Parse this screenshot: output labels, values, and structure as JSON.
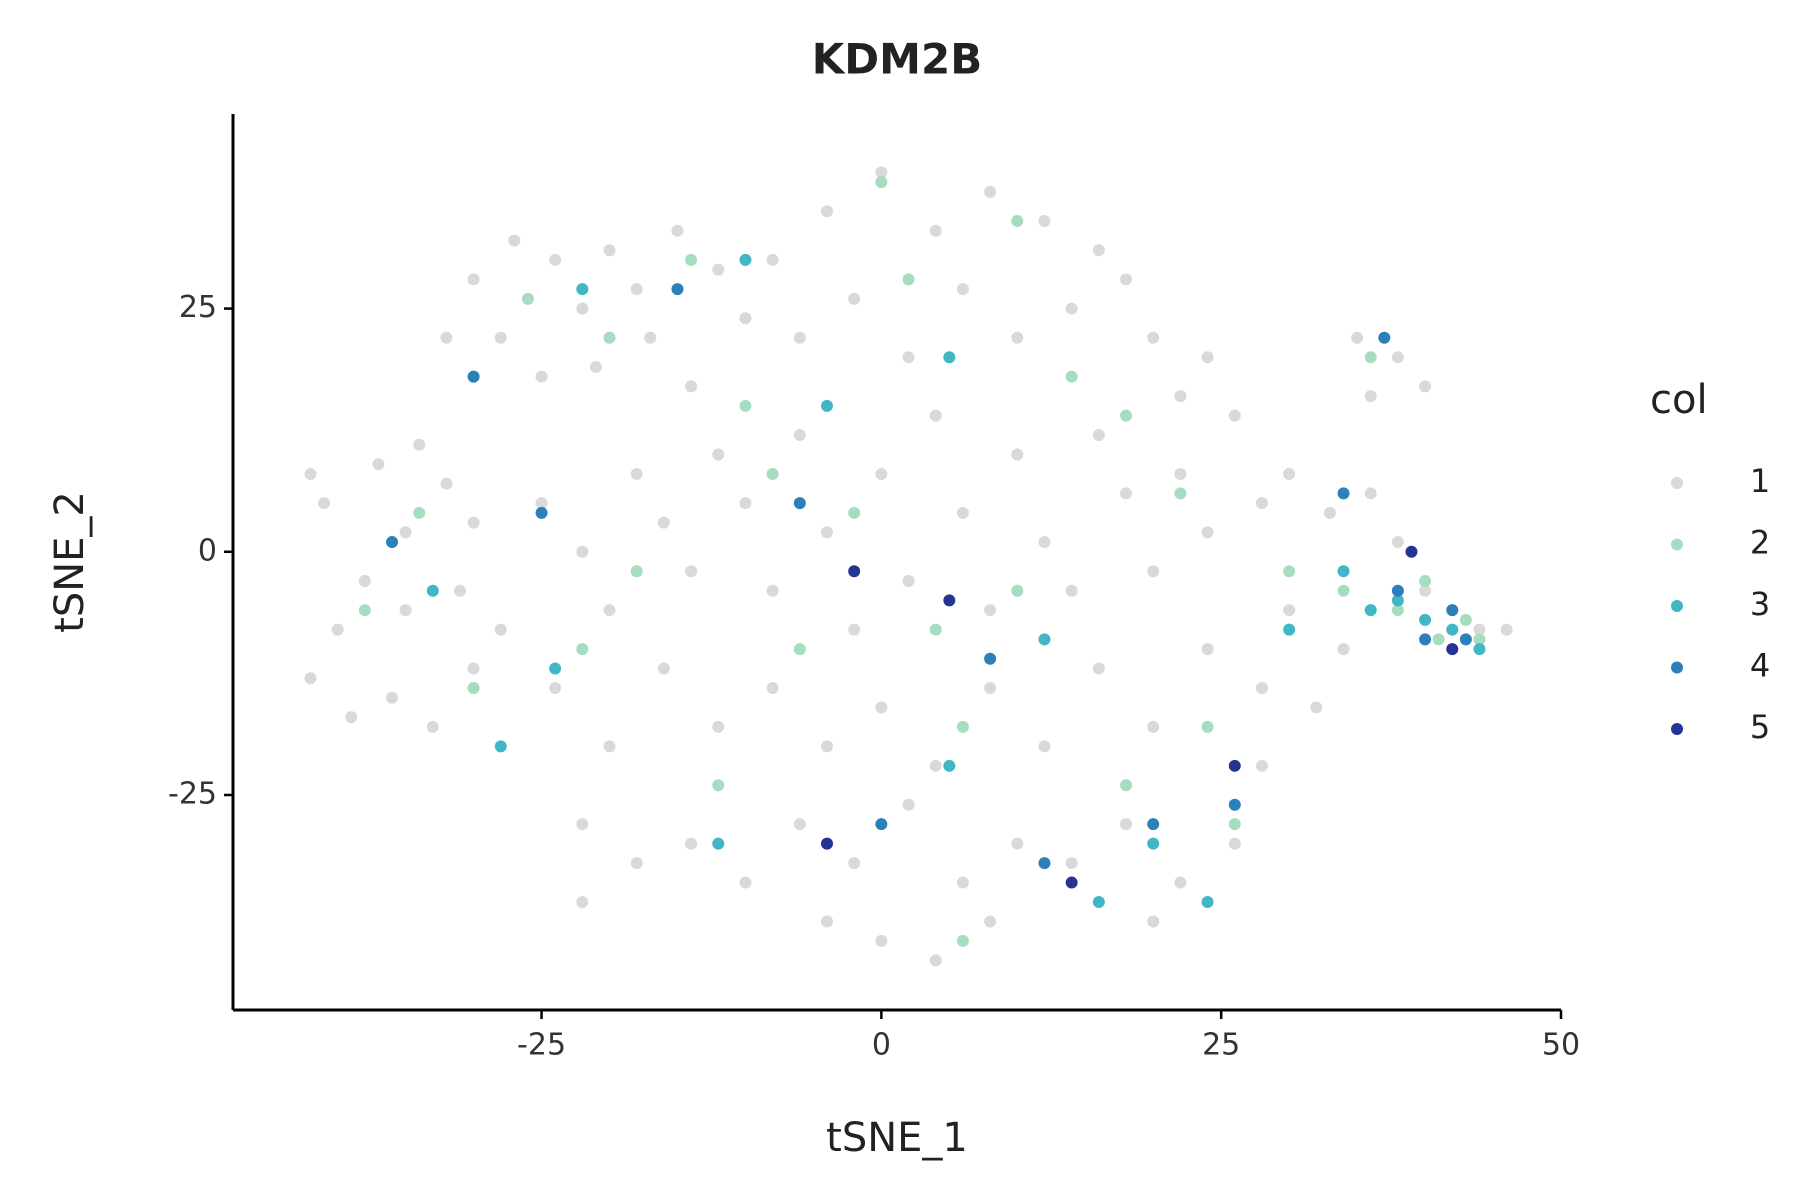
{
  "chart_data": {
    "type": "scatter",
    "title": "KDM2B",
    "x_label": "tSNE_1",
    "y_label": "tSNE_2",
    "xlim": [
      -47.7,
      50
    ],
    "ylim": [
      -47.1,
      45
    ],
    "xticks": [
      -25,
      0,
      25,
      50
    ],
    "yticks": [
      -25,
      0,
      25
    ],
    "legend_title": "col",
    "legend_position": "right",
    "series": [
      {
        "name": "1",
        "color": "#d9d9d9",
        "x": [
          -42,
          -40,
          -38,
          -41,
          -37,
          -34,
          -32,
          -30,
          -36,
          -33,
          -30,
          -39,
          -35,
          -31,
          -28,
          -42,
          -35,
          -30,
          -27,
          -24,
          -22,
          -20,
          -18,
          -15,
          -12,
          -28,
          -25,
          -21,
          -17,
          -14,
          -10,
          -32,
          -25,
          -22,
          -20,
          -18,
          -16,
          -14,
          -12,
          -10,
          -8,
          -6,
          -4,
          -2,
          0,
          2,
          4,
          6,
          8,
          10,
          12,
          14,
          16,
          18,
          20,
          22,
          24,
          -24,
          -20,
          -16,
          -12,
          -8,
          -4,
          0,
          4,
          8,
          12,
          16,
          20,
          24,
          28,
          30,
          -22,
          -18,
          -14,
          -10,
          -6,
          -2,
          2,
          6,
          10,
          14,
          18,
          22,
          26,
          28,
          -22,
          0,
          4,
          8,
          -4,
          20,
          -8,
          -4,
          0,
          4,
          8,
          12,
          16,
          18,
          -6,
          -2,
          2,
          6,
          10,
          14,
          20,
          24,
          26,
          22,
          30,
          33,
          36,
          38,
          40,
          34,
          32,
          28,
          35,
          38,
          40,
          36,
          42,
          44,
          46
        ],
        "values": [
          -13,
          -8,
          -3,
          5,
          9,
          11,
          7,
          3,
          -15,
          -18,
          -12,
          -17,
          -6,
          -4,
          -8,
          8,
          2,
          28,
          32,
          30,
          25,
          31,
          27,
          33,
          29,
          22,
          18,
          19,
          22,
          17,
          24,
          22,
          5,
          0,
          -6,
          8,
          3,
          -2,
          10,
          5,
          -4,
          12,
          2,
          -8,
          8,
          -3,
          14,
          4,
          -6,
          10,
          1,
          -4,
          12,
          6,
          -2,
          8,
          2,
          -14,
          -20,
          -12,
          -18,
          -14,
          -20,
          -16,
          -22,
          -14,
          -20,
          -12,
          -18,
          -10,
          -14,
          -6,
          -28,
          -32,
          -30,
          -34,
          -28,
          -32,
          -26,
          -34,
          -30,
          -32,
          -28,
          -34,
          -30,
          -22,
          -36,
          -40,
          -42,
          -38,
          -38,
          -38,
          30,
          35,
          39,
          33,
          37,
          34,
          31,
          28,
          22,
          26,
          20,
          27,
          22,
          25,
          22,
          20,
          14,
          16,
          8,
          4,
          6,
          1,
          -4,
          -10,
          -16,
          5,
          22,
          20,
          17,
          16,
          -6,
          -8,
          -8
        ]
      },
      {
        "name": "2",
        "color": "#a6dcbf",
        "x": [
          -38,
          -34,
          -30,
          -26,
          -20,
          -14,
          -18,
          -10,
          -6,
          -2,
          2,
          6,
          10,
          14,
          18,
          22,
          26,
          30,
          34,
          38,
          41,
          43,
          -12,
          -4,
          6,
          10,
          0,
          -22,
          18,
          24,
          -8,
          4,
          36,
          44,
          40
        ],
        "values": [
          -6,
          4,
          -14,
          26,
          22,
          30,
          -2,
          15,
          -10,
          4,
          28,
          -18,
          -4,
          18,
          -24,
          6,
          -28,
          -2,
          -4,
          -6,
          -9,
          -7,
          -24,
          -30,
          -40,
          34,
          38,
          -10,
          14,
          -18,
          8,
          -8,
          20,
          -9,
          -3
        ]
      },
      {
        "name": "3",
        "color": "#41b6c4",
        "x": [
          -33,
          -28,
          -24,
          -10,
          -4,
          5,
          12,
          16,
          20,
          24,
          30,
          34,
          36,
          38,
          40,
          42,
          44,
          -22,
          -12,
          5
        ],
        "values": [
          -4,
          -20,
          -12,
          30,
          15,
          -22,
          -9,
          -36,
          -30,
          -36,
          -8,
          -2,
          -6,
          -5,
          -7,
          -8,
          -10,
          27,
          -30,
          20
        ]
      },
      {
        "name": "4",
        "color": "#2c7fb8",
        "x": [
          -36,
          -25,
          -6,
          0,
          8,
          12,
          20,
          26,
          34,
          38,
          40,
          42,
          43,
          37,
          -30,
          -15
        ],
        "values": [
          1,
          4,
          5,
          -28,
          -11,
          -32,
          -28,
          -26,
          6,
          -4,
          -9,
          -6,
          -9,
          22,
          18,
          27
        ]
      },
      {
        "name": "5",
        "color": "#253494",
        "x": [
          -2,
          5,
          14,
          39,
          42,
          26,
          -4
        ],
        "values": [
          -2,
          -5,
          -34,
          0,
          -10,
          -22,
          -30
        ]
      }
    ]
  }
}
